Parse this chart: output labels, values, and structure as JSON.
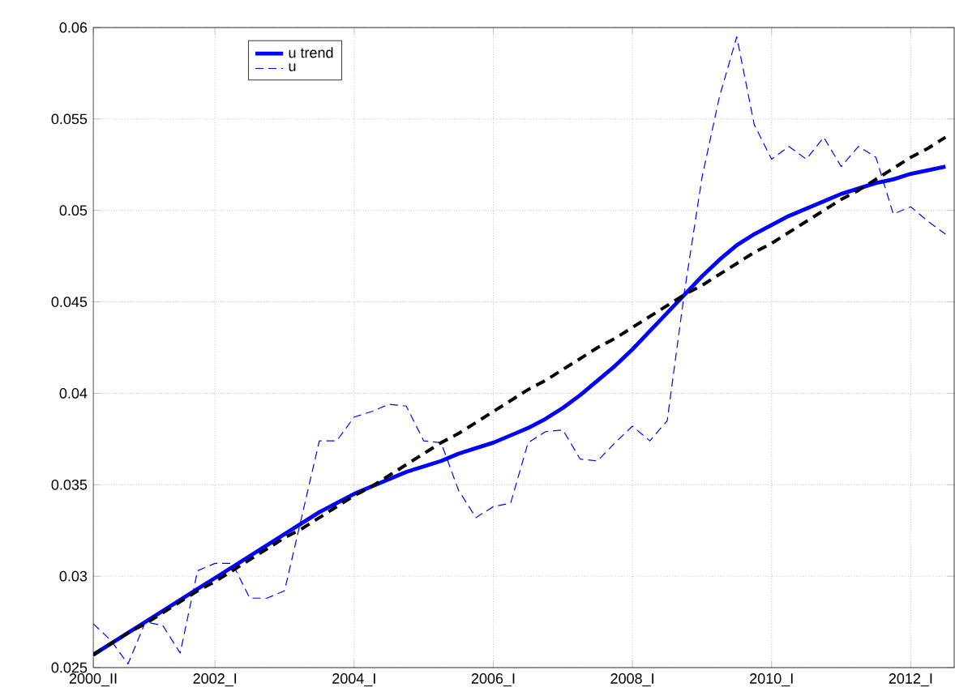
{
  "chart_data": {
    "type": "line",
    "categories": [
      "2000_II",
      null,
      null,
      null,
      null,
      null,
      null,
      "2002_I",
      null,
      null,
      null,
      null,
      null,
      null,
      null,
      "2004_I",
      null,
      null,
      null,
      null,
      null,
      null,
      null,
      "2006_I",
      null,
      null,
      null,
      null,
      null,
      null,
      null,
      "2008_I",
      null,
      null,
      null,
      null,
      null,
      null,
      null,
      "2010_I",
      null,
      null,
      null,
      null,
      null,
      null,
      null,
      "2012_I",
      null,
      null
    ],
    "series": [
      {
        "name": "u trend",
        "color": "#0000ff",
        "line_style": "solid",
        "values": [
          0.0257,
          0.0263,
          0.0269,
          0.0275,
          0.0281,
          0.0287,
          0.0293,
          0.0299,
          0.0305,
          0.0311,
          0.0317,
          0.0323,
          0.0329,
          0.0335,
          0.034,
          0.0345,
          0.0349,
          0.0353,
          0.0357,
          0.036,
          0.0363,
          0.0367,
          0.037,
          0.0373,
          0.0377,
          0.0381,
          0.0386,
          0.0392,
          0.0399,
          0.0407,
          0.0415,
          0.0424,
          0.0434,
          0.0444,
          0.0454,
          0.0464,
          0.0473,
          0.0481,
          0.0487,
          0.0492,
          0.0497,
          0.0501,
          0.0505,
          0.0509,
          0.0512,
          0.0515,
          0.0517,
          0.052,
          0.0522,
          0.0524
        ]
      },
      {
        "name": "u",
        "color": "#0000ff",
        "line_style": "dashed",
        "values": [
          0.0274,
          0.0265,
          0.0252,
          0.0275,
          0.0273,
          0.0258,
          0.0303,
          0.0307,
          0.0307,
          0.0288,
          0.0288,
          0.0292,
          0.0333,
          0.0374,
          0.0374,
          0.0387,
          0.039,
          0.0394,
          0.0393,
          0.0374,
          0.0373,
          0.0347,
          0.0332,
          0.0338,
          0.034,
          0.0373,
          0.0379,
          0.038,
          0.0364,
          0.0363,
          0.0373,
          0.0382,
          0.0374,
          0.0385,
          0.0456,
          0.0518,
          0.0562,
          0.0595,
          0.0547,
          0.0528,
          0.0535,
          0.0528,
          0.054,
          0.0524,
          0.0535,
          0.0529,
          0.0498,
          0.0502,
          0.0494,
          0.0487
        ]
      },
      {
        "color": "#000000",
        "line_style": "dashed",
        "values": [
          0.0257,
          0.0263,
          0.0269,
          0.0274,
          0.028,
          0.0286,
          0.0292,
          0.0297,
          0.0303,
          0.0309,
          0.0315,
          0.0321,
          0.0326,
          0.0332,
          0.0338,
          0.0344,
          0.0349,
          0.0355,
          0.0361,
          0.0367,
          0.0373,
          0.0378,
          0.0384,
          0.039,
          0.0396,
          0.0402,
          0.0407,
          0.0413,
          0.0419,
          0.0425,
          0.043,
          0.0436,
          0.0442,
          0.0448,
          0.0454,
          0.0459,
          0.0465,
          0.0471,
          0.0477,
          0.0482,
          0.0488,
          0.0494,
          0.05,
          0.0506,
          0.0511,
          0.0517,
          0.0523,
          0.0529,
          0.0534,
          0.054
        ]
      }
    ],
    "ylim": [
      0.025,
      0.06
    ],
    "yticks": [
      0.025,
      0.03,
      0.035,
      0.04,
      0.045,
      0.05,
      0.055,
      0.06
    ],
    "grid": true,
    "legend": "top left"
  }
}
